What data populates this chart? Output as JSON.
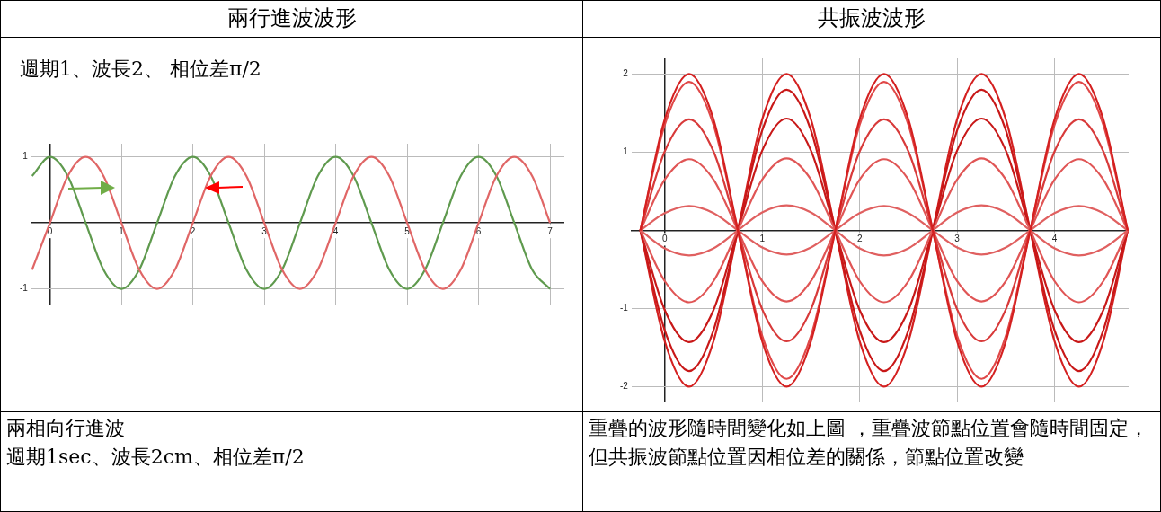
{
  "chart_data": [
    {
      "type": "line",
      "title": "兩行進波波形",
      "subtitle": "週期1、波長2、 相位差π/2",
      "annotations": [
        "兩相向行進波",
        "週期1sec、波長2cm、相位差π/2"
      ],
      "x": [
        -0.25,
        0,
        0.25,
        0.5,
        0.75,
        1,
        1.25,
        1.5,
        1.75,
        2,
        2.25,
        2.5,
        2.75,
        3,
        3.25,
        3.5,
        3.75,
        4,
        4.25,
        4.5,
        4.75,
        5,
        5.25,
        5.5,
        5.75,
        6,
        6.25,
        6.5,
        6.75,
        7
      ],
      "series": [
        {
          "color": "#e06666",
          "values": [
            -0.71,
            0,
            0.71,
            1,
            0.71,
            0,
            -0.71,
            -1,
            -0.71,
            0,
            0.71,
            1,
            0.71,
            0,
            -0.71,
            -1,
            -0.71,
            0,
            0.71,
            1,
            0.71,
            0,
            -0.71,
            -1,
            -0.71,
            0,
            0.71,
            1,
            0.71,
            0
          ]
        },
        {
          "color": "#5f9a4e",
          "values": [
            0.71,
            1,
            0.71,
            0,
            -0.71,
            -1,
            -0.71,
            0,
            0.71,
            1,
            0.71,
            0,
            -0.71,
            -1,
            -0.71,
            0,
            0.71,
            1,
            0.71,
            0,
            -0.71,
            -1,
            -0.71,
            0,
            0.71,
            1,
            0.71,
            0,
            -0.71,
            -1
          ]
        }
      ],
      "xlim": [
        -0.26,
        7.2
      ],
      "ylim": [
        -1.25,
        1.2
      ],
      "xticks": [
        0,
        1,
        2,
        3,
        4,
        5,
        6,
        7
      ],
      "yticks": [
        -1,
        1
      ],
      "grid": true,
      "legend": false
    },
    {
      "type": "line",
      "title": "共振波波形",
      "annotations": [
        "重疊的波形隨時間變化如上圖 ，重疊波節點位置會隨時間固定，但共振波節點位置因相位差的關係，節點位置改變"
      ],
      "x": [
        -0.25,
        0,
        0.25,
        0.5,
        0.75,
        1,
        1.25,
        1.5,
        1.75,
        2,
        2.25,
        2.5,
        2.75,
        3,
        3.25,
        3.5,
        3.75,
        4,
        4.25,
        4.5,
        4.75
      ],
      "series": [
        {
          "color": "#d42020",
          "values": [
            0,
            1.42,
            2,
            1.42,
            0,
            -1.42,
            -2,
            -1.42,
            0,
            1.42,
            2,
            1.42,
            0,
            -1.42,
            -2,
            -1.42,
            0,
            1.42,
            2,
            1.42,
            0
          ]
        },
        {
          "color": "#e04848",
          "values": [
            0,
            1.35,
            1.9,
            1.35,
            0,
            -1.35,
            -1.9,
            -1.35,
            0,
            1.35,
            1.9,
            1.35,
            0,
            -1.35,
            -1.9,
            -1.35,
            0,
            1.35,
            1.9,
            1.35,
            0
          ]
        },
        {
          "color": "#d83a3a",
          "values": [
            0,
            1.01,
            1.42,
            1.01,
            0,
            -1.01,
            -1.42,
            -1.01,
            0,
            1.01,
            1.42,
            1.01,
            0,
            -1.01,
            -1.42,
            -1.01,
            0,
            1.01,
            1.42,
            1.01,
            0
          ]
        },
        {
          "color": "#e05555",
          "values": [
            0,
            0.65,
            0.91,
            0.65,
            0,
            -0.65,
            -0.91,
            -0.65,
            0,
            0.65,
            0.91,
            0.65,
            0,
            -0.65,
            -0.91,
            -0.65,
            0,
            0.65,
            0.91,
            0.65,
            0
          ]
        },
        {
          "color": "#e06060",
          "values": [
            0,
            0.22,
            0.31,
            0.22,
            0,
            -0.22,
            -0.31,
            -0.22,
            0,
            0.22,
            0.31,
            0.22,
            0,
            -0.22,
            -0.31,
            -0.22,
            0,
            0.22,
            0.31,
            0.22,
            0
          ]
        },
        {
          "color": "#e06060",
          "values": [
            0,
            -0.23,
            -0.32,
            -0.23,
            0,
            0.23,
            0.32,
            0.23,
            0,
            -0.23,
            -0.32,
            -0.23,
            0,
            0.23,
            0.32,
            0.23,
            0,
            -0.23,
            -0.32,
            -0.23,
            0
          ]
        },
        {
          "color": "#e05555",
          "values": [
            0,
            -0.65,
            -0.92,
            -0.65,
            0,
            0.65,
            0.92,
            0.65,
            0,
            -0.65,
            -0.92,
            -0.65,
            0,
            0.65,
            0.92,
            0.65,
            0,
            -0.65,
            -0.92,
            -0.65,
            0
          ]
        },
        {
          "color": "#c81818",
          "values": [
            0,
            -1.02,
            -1.43,
            -1.02,
            0,
            1.02,
            1.43,
            1.02,
            0,
            -1.02,
            -1.43,
            -1.02,
            0,
            1.02,
            1.43,
            1.02,
            0,
            -1.02,
            -1.43,
            -1.02,
            0
          ]
        },
        {
          "color": "#c81818",
          "values": [
            0,
            -1.28,
            -1.8,
            -1.28,
            0,
            1.28,
            1.8,
            1.28,
            0,
            -1.28,
            -1.8,
            -1.28,
            0,
            1.28,
            1.8,
            1.28,
            0,
            -1.28,
            -1.8,
            -1.28,
            0
          ]
        },
        {
          "color": "#d42020",
          "values": [
            0,
            -1.42,
            -2,
            -1.42,
            0,
            1.42,
            2,
            1.42,
            0,
            -1.42,
            -2,
            -1.42,
            0,
            1.42,
            2,
            1.42,
            0,
            -1.42,
            -2,
            -1.42,
            0
          ]
        }
      ],
      "xlim": [
        -0.34,
        4.76
      ],
      "ylim": [
        -2.19,
        2.2
      ],
      "xticks": [
        0,
        1,
        2,
        3,
        4
      ],
      "yticks": [
        -2,
        -1,
        1,
        2
      ],
      "grid": true,
      "legend": false
    }
  ]
}
